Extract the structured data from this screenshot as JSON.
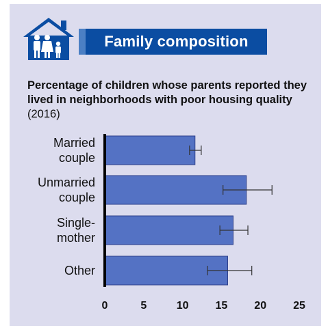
{
  "header": {
    "banner_title": "Family composition",
    "icon": "family-house-icon"
  },
  "colors": {
    "bar": "#5472c4",
    "banner": "#0b4da2",
    "background": "#dcdcee",
    "icon": "#0b4da2"
  },
  "chart_data": {
    "type": "bar",
    "orientation": "horizontal",
    "title_bold": "Percentage of children whose parents reported they lived in neighborhoods with poor housing quality",
    "title_suffix": " (2016)",
    "categories": [
      [
        "Married",
        "couple"
      ],
      [
        "Unmarried",
        "couple"
      ],
      [
        "Single-",
        "mother"
      ],
      [
        "Other"
      ]
    ],
    "values": [
      11.6,
      18.2,
      16.5,
      15.8
    ],
    "error_low": [
      10.9,
      15.2,
      14.8,
      13.2
    ],
    "error_high": [
      12.4,
      21.5,
      18.4,
      18.9
    ],
    "xlim": [
      0,
      25
    ],
    "xticks": [
      0,
      5,
      10,
      15,
      20,
      25
    ],
    "grid": false,
    "legend": "none"
  }
}
